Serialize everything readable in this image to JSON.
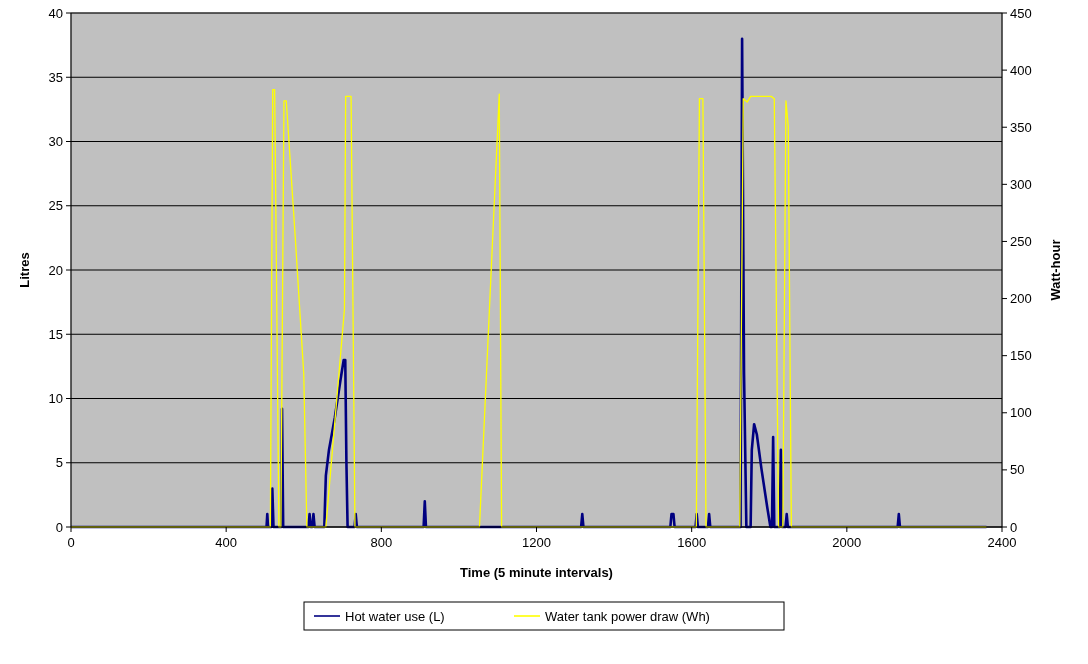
{
  "chart_data": {
    "type": "line",
    "xlabel": "Time (5 minute intervals)",
    "ylabel": "Litres",
    "y2label": "Watt-hour",
    "xlim": [
      0,
      2400
    ],
    "xticks": [
      0,
      400,
      800,
      1200,
      1600,
      2000,
      2400
    ],
    "ylim": [
      0,
      40
    ],
    "yticks": [
      0,
      5,
      10,
      15,
      20,
      25,
      30,
      35,
      40
    ],
    "y2lim": [
      0,
      450
    ],
    "y2ticks": [
      0,
      50,
      100,
      150,
      200,
      250,
      300,
      350,
      400,
      450
    ],
    "grid": "y",
    "legend": "bottom",
    "marker": "none",
    "series": [
      {
        "name": "Hot water use (L)",
        "color": "#000080",
        "x": [
          0,
          504,
          506,
          508,
          516,
          519,
          522,
          542,
          544,
          547,
          612,
          615,
          618,
          622,
          625,
          628,
          653,
          657,
          665,
          680,
          695,
          703,
          707,
          710,
          713,
          731,
          734,
          737,
          909,
          912,
          915,
          1315,
          1318,
          1321,
          1545,
          1548,
          1553,
          1556,
          1610,
          1613,
          1616,
          1642,
          1645,
          1648,
          1726,
          1730,
          1735,
          1741,
          1752,
          1755,
          1761,
          1768,
          1780,
          1795,
          1803,
          1807,
          1810,
          1813,
          1827,
          1830,
          1833,
          1842,
          1845,
          1848,
          2131,
          2134,
          2137,
          2360
        ],
        "values": [
          0,
          0,
          1,
          0,
          0,
          3,
          0,
          0,
          9.2,
          0,
          0,
          1,
          0,
          0,
          1,
          0,
          0,
          4,
          6,
          8.5,
          11.5,
          13,
          13,
          5,
          0,
          0,
          1,
          0,
          0,
          2,
          0,
          0,
          1,
          0,
          0,
          1,
          1,
          0,
          0,
          1,
          0,
          0,
          1,
          0,
          0,
          38,
          12,
          0,
          0,
          6,
          8,
          7.2,
          4.5,
          1.5,
          0,
          0,
          7,
          0,
          0,
          6,
          0,
          0,
          1,
          0,
          0,
          1,
          0,
          0
        ]
      },
      {
        "name": "Water tank power draw (Wh)",
        "color": "#ffff00",
        "axis": "y2",
        "x": [
          0,
          514,
          520,
          525,
          536,
          541,
          549,
          555,
          578,
          600,
          608,
          657,
          705,
          708,
          722,
          732,
          1053,
          1104,
          1110,
          1612,
          1620,
          1629,
          1637,
          1724,
          1733,
          1743,
          1752,
          1805,
          1813,
          1824,
          1835,
          1843,
          1849,
          1857,
          2360
        ],
        "values": [
          0,
          0,
          383,
          383,
          0,
          0,
          373,
          373,
          254,
          134,
          0,
          0,
          191,
          377,
          377,
          0,
          0,
          379,
          0,
          0,
          375,
          375,
          0,
          0,
          375,
          372,
          377,
          377,
          375,
          0,
          0,
          373,
          351,
          0,
          0
        ]
      }
    ]
  }
}
